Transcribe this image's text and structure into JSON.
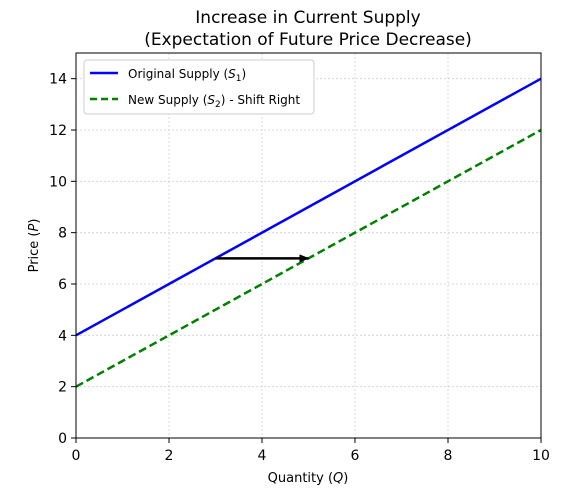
{
  "chart_data": {
    "type": "line",
    "title": "Increase in Current Supply",
    "subtitle": "(Expectation of Future Price Decrease)",
    "xlabel": "Quantity (Q)",
    "ylabel": "Price (P)",
    "xlim": [
      0,
      10
    ],
    "ylim": [
      0,
      15
    ],
    "xticks": [
      0,
      2,
      4,
      6,
      8,
      10
    ],
    "yticks": [
      0,
      2,
      4,
      6,
      8,
      10,
      12,
      14
    ],
    "grid": true,
    "legend_position": "top-left",
    "series": [
      {
        "name": "Original Supply (S1)",
        "x": [
          0,
          10
        ],
        "y": [
          4,
          14
        ],
        "color": "#0000ff",
        "style": "solid"
      },
      {
        "name": "New Supply (S2) - Shift Right",
        "x": [
          0,
          10
        ],
        "y": [
          2,
          12
        ],
        "color": "#008000",
        "style": "dashed"
      }
    ],
    "annotations": [
      {
        "type": "arrow",
        "from": [
          3,
          7
        ],
        "to": [
          5,
          7
        ],
        "color": "#000000"
      }
    ]
  }
}
